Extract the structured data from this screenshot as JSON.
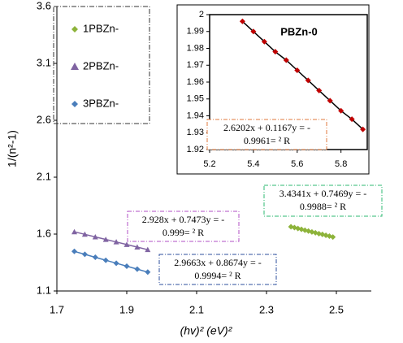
{
  "chart_data": [
    {
      "type": "scatter",
      "x_label": "(hv)² (eV)²",
      "y_label": "1/(n²-1)",
      "xlim": [
        1.7,
        2.6
      ],
      "xticks": [
        1.7,
        1.9,
        2.1,
        2.3,
        2.5
      ],
      "ylim": [
        1.1,
        3.6
      ],
      "yticks": [
        1.1,
        1.6,
        2.1,
        2.6,
        3.1,
        3.6
      ],
      "legend": "top-left",
      "series": [
        {
          "name": "1PBZn-",
          "color": "#8db33a",
          "marker": "diamond",
          "x": [
            2.37,
            2.38,
            2.39,
            2.4,
            2.41,
            2.42,
            2.43,
            2.44,
            2.45,
            2.46,
            2.47,
            2.48,
            2.49
          ],
          "values": [
            1.664,
            1.657,
            1.649,
            1.642,
            1.634,
            1.627,
            1.619,
            1.612,
            1.604,
            1.597,
            1.589,
            1.582,
            1.574
          ]
        },
        {
          "name": "2PBZn-",
          "color": "#8064a2",
          "marker": "triangle",
          "x": [
            1.75,
            1.78,
            1.81,
            1.84,
            1.87,
            1.9,
            1.93,
            1.96
          ],
          "values": [
            1.62,
            1.598,
            1.575,
            1.553,
            1.531,
            1.508,
            1.486,
            1.463
          ]
        },
        {
          "name": "3PBZn-",
          "color": "#4a7ebb",
          "marker": "diamond",
          "x": [
            1.75,
            1.78,
            1.81,
            1.84,
            1.87,
            1.9,
            1.93,
            1.96
          ],
          "values": [
            1.448,
            1.422,
            1.396,
            1.37,
            1.344,
            1.318,
            1.292,
            1.266
          ]
        }
      ],
      "annotations": [
        {
          "lines": [
            "3.4341x + 0.7469y = -",
            "0.9988= ² R"
          ],
          "color": "#2eb872"
        },
        {
          "lines": [
            "2.928x + 0.7473y = -",
            "0.999= ² R"
          ],
          "color": "#b04fc4"
        },
        {
          "lines": [
            "2.9663x + 0.8674y = -",
            "0.9994= ² R"
          ],
          "color": "#2c4f9e"
        }
      ]
    },
    {
      "type": "scatter",
      "title": "PBZn-0",
      "xlim": [
        5.2,
        5.92
      ],
      "xticks": [
        5.2,
        5.4,
        5.6,
        5.8
      ],
      "ylim": [
        1.92,
        2.0
      ],
      "yticks": [
        1.92,
        1.93,
        1.94,
        1.95,
        1.96,
        1.97,
        1.98,
        1.99,
        2
      ],
      "series": [
        {
          "color": "#c00000",
          "marker": "diamond",
          "trendline_color": "#000000",
          "x": [
            5.35,
            5.4,
            5.45,
            5.5,
            5.55,
            5.6,
            5.65,
            5.7,
            5.75,
            5.8,
            5.85,
            5.9
          ],
          "values": [
            1.996,
            1.99,
            1.984,
            1.978,
            1.973,
            1.967,
            1.961,
            1.955,
            1.949,
            1.943,
            1.938,
            1.932
          ]
        }
      ],
      "annotations": [
        {
          "lines": [
            "2.6202x + 0.1167y = -",
            "0.9961= ² R"
          ],
          "color": "#e07a3c"
        }
      ]
    }
  ]
}
